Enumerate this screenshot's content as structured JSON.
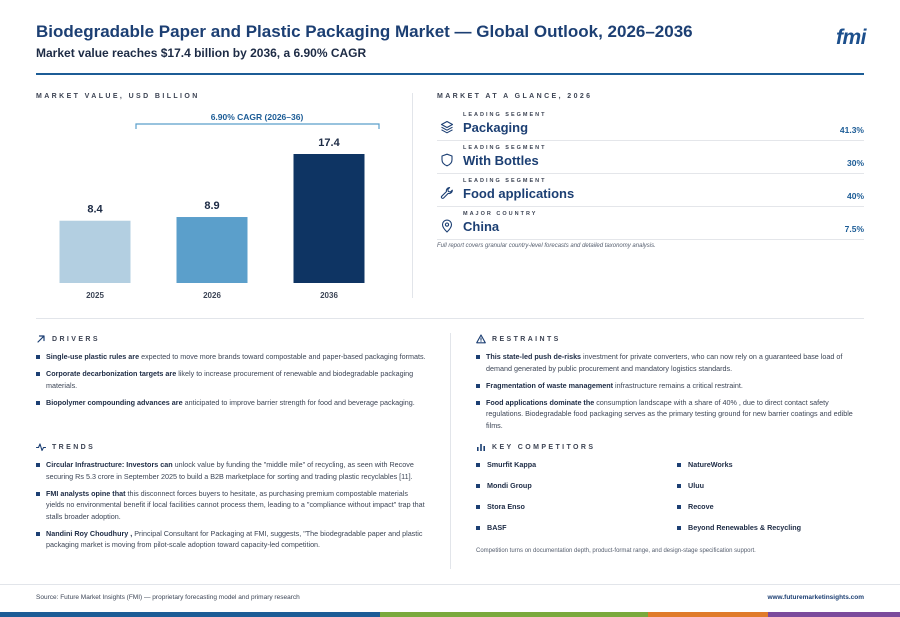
{
  "header": {
    "title": "Biodegradable Paper and Plastic Packaging Market — Global Outlook, 2026–2036",
    "subtitle": "Market value reaches $17.4 billion by 2036, a 6.90% CAGR",
    "logo": "fmi"
  },
  "market_value": {
    "section_label": "MARKET VALUE, USD BILLION"
  },
  "chart_data": {
    "type": "bar",
    "categories": [
      "2025",
      "2026",
      "2036"
    ],
    "values": [
      8.4,
      8.9,
      17.4
    ],
    "value_labels": [
      "8.4",
      "8.9",
      "17.4"
    ],
    "bar_colors": [
      "#b3cfe1",
      "#5b9fcb",
      "#0e3463"
    ],
    "annotation": "6.90% CAGR (2026–36)",
    "ylim": [
      0,
      17.4
    ],
    "grid": false,
    "legend": "none",
    "title": "",
    "xlabel": "",
    "ylabel": ""
  },
  "glance": {
    "section_label": "MARKET AT A GLANCE, 2026",
    "rows": [
      {
        "kicker": "LEADING SEGMENT",
        "value": "Packaging",
        "pct": "41.3%",
        "icon": "layers-icon"
      },
      {
        "kicker": "LEADING SEGMENT",
        "value": "With Bottles",
        "pct": "30%",
        "icon": "shield-icon"
      },
      {
        "kicker": "LEADING SEGMENT",
        "value": "Food applications",
        "pct": "40%",
        "icon": "wrench-icon"
      },
      {
        "kicker": "MAJOR COUNTRY",
        "value": "China",
        "pct": "7.5%",
        "icon": "map-pin-icon"
      }
    ],
    "note": "Full report covers granular country-level forecasts and detailed taxonomy analysis."
  },
  "drivers": {
    "label": "DRIVERS",
    "items": [
      {
        "bold": "Single-use plastic rules are",
        "text": " expected to move more brands toward compostable and paper-based packaging formats."
      },
      {
        "bold": "Corporate decarbonization targets are",
        "text": " likely to increase procurement of renewable and biodegradable packaging materials."
      },
      {
        "bold": "Biopolymer compounding advances are",
        "text": " anticipated to improve barrier strength for food and beverage packaging."
      }
    ]
  },
  "trends": {
    "label": "TRENDS",
    "items": [
      {
        "bold": "Circular Infrastructure: Investors can",
        "text": " unlock value by funding the \"middle mile\" of recycling, as seen with Recove securing Rs 5.3 crore in September 2025 to build a B2B marketplace for sorting and trading plastic recyclables [11]."
      },
      {
        "bold": "FMI analysts opine that",
        "text": " this disconnect forces buyers to hesitate, as purchasing premium compostable materials yields no environmental benefit if local facilities cannot process them, leading to a \"compliance without impact\" trap that stalls broader adoption."
      },
      {
        "bold": "Nandini Roy Choudhury ,",
        "text": " Principal Consultant for Packaging at FMI, suggests, \"The biodegradable paper and plastic packaging market is moving from pilot-scale adoption toward capacity-led competition."
      }
    ]
  },
  "restraints": {
    "label": "RESTRAINTS",
    "items": [
      {
        "bold": "This state-led push de-risks",
        "text": " investment for private converters, who can now rely on a guaranteed base load of demand generated by public procurement and mandatory logistics standards."
      },
      {
        "bold": "Fragmentation of waste management",
        "text": " infrastructure remains a critical restraint."
      },
      {
        "bold": "Food applications dominate the",
        "text": " consumption landscape with a share of 40% , due to direct contact safety regulations. Biodegradable food packaging serves as the primary testing ground for new barrier coatings and edible films."
      }
    ]
  },
  "competitors": {
    "label": "KEY COMPETITORS",
    "left": [
      "Smurfit Kappa",
      "Mondi Group",
      "Stora Enso",
      "BASF"
    ],
    "right": [
      "NatureWorks",
      "Uluu",
      "Recove",
      "Beyond Renewables & Recycling"
    ],
    "note": "Competition turns on documentation depth, product-format range, and design-stage specification support."
  },
  "footer": {
    "source": "Source: Future Market Insights (FMI) — proprietary forecasting model and primary research",
    "url": "www.futuremarketinsights.com"
  },
  "colors": {
    "primary": "#1c3f73",
    "accent": "#1c5c96",
    "bar_strip": [
      "#1c5c96",
      "#7aa93c",
      "#e07b2a",
      "#7b4a9c"
    ]
  }
}
